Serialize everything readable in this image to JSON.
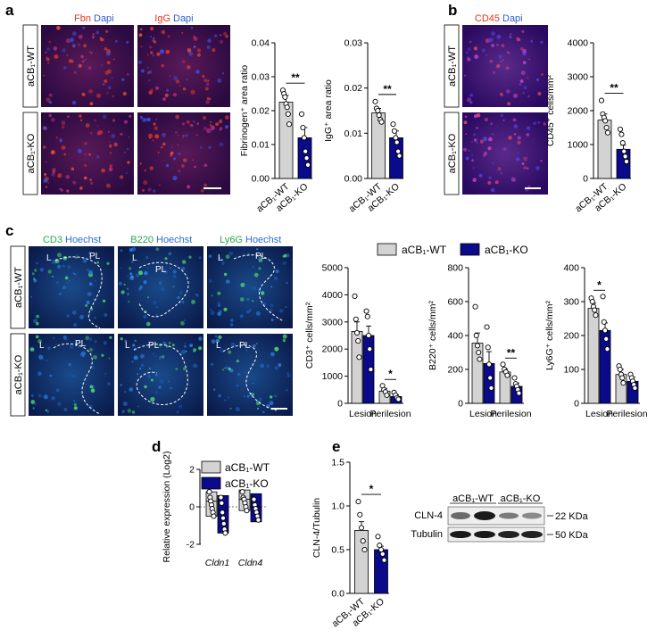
{
  "panels": {
    "a": "a",
    "b": "b",
    "c": "c",
    "d": "d",
    "e": "e"
  },
  "groups": {
    "wt": "aCB₁-WT",
    "ko": "aCB₁-KO"
  },
  "colors": {
    "wt": "#d3d3d3",
    "ko": "#0a0a8a",
    "red": "#e2341c",
    "blue": "#2b5cd6",
    "green": "#2aa84a",
    "hoechst": "#2b6ed6"
  },
  "micro_titles": {
    "a1_stain": "Fbn",
    "a1_dapi": "Dapi",
    "a2_stain": "IgG",
    "a2_dapi": "Dapi",
    "b_stain": "CD45",
    "b_dapi": "Dapi",
    "c1_stain": "CD3",
    "c1_dapi": "Hoechst",
    "c2_stain": "B220",
    "c2_dapi": "Hoechst",
    "c3_stain": "Ly6G",
    "c3_dapi": "Hoechst"
  },
  "micro_region_labels": {
    "lesion": "L",
    "perilesion": "PL"
  },
  "chart_data": [
    {
      "id": "a-fib",
      "type": "bar",
      "ylabel": "Fibrinogen⁺ area ratio",
      "ylim": [
        0,
        0.04
      ],
      "yticks": [
        "0.00",
        "0.01",
        "0.02",
        "0.03",
        "0.04"
      ],
      "categories": [
        "aCB₁-WT",
        "aCB₁-KO"
      ],
      "values": [
        0.0225,
        0.012
      ],
      "errors": [
        0.002,
        0.003
      ],
      "points": [
        [
          0.026,
          0.025,
          0.024,
          0.022,
          0.021,
          0.019,
          0.016
        ],
        [
          0.019,
          0.015,
          0.012,
          0.008,
          0.006,
          0.004
        ]
      ],
      "significance": [
        {
          "label": "**",
          "pair": [
            0,
            1
          ]
        }
      ]
    },
    {
      "id": "a-igg",
      "type": "bar",
      "ylabel": "IgG⁺ area ratio",
      "ylim": [
        0,
        0.03
      ],
      "yticks": [
        "0.00",
        "0.01",
        "0.02",
        "0.03"
      ],
      "categories": [
        "aCB₁-WT",
        "aCB₁-KO"
      ],
      "values": [
        0.0145,
        0.009
      ],
      "errors": [
        0.001,
        0.0015
      ],
      "points": [
        [
          0.017,
          0.0155,
          0.015,
          0.014,
          0.013,
          0.0125
        ],
        [
          0.012,
          0.0105,
          0.009,
          0.008,
          0.006,
          0.005
        ]
      ],
      "significance": [
        {
          "label": "**",
          "pair": [
            0,
            1
          ]
        }
      ]
    },
    {
      "id": "b-cd45",
      "type": "bar",
      "ylabel": "CD45⁺ cells/mm²",
      "ylim": [
        0,
        4000
      ],
      "yticks": [
        "0",
        "1000",
        "2000",
        "3000",
        "4000"
      ],
      "categories": [
        "aCB₁-WT",
        "aCB₁-KO"
      ],
      "values": [
        1720,
        860
      ],
      "errors": [
        180,
        120
      ],
      "points": [
        [
          2300,
          1900,
          1800,
          1700,
          1500,
          1350
        ],
        [
          1450,
          1300,
          1050,
          800,
          650,
          500
        ]
      ],
      "significance": [
        {
          "label": "**",
          "pair": [
            0,
            1
          ]
        }
      ]
    },
    {
      "id": "c-cd3",
      "type": "bar",
      "ylabel": "CD3⁺ cells/mm²",
      "ylim": [
        0,
        5000
      ],
      "yticks": [
        "0",
        "1000",
        "2000",
        "3000",
        "4000",
        "5000"
      ],
      "categories": [
        "Lesion",
        "Perilesion"
      ],
      "series": [
        {
          "values": [
            2650,
            450
          ],
          "errors": [
            350,
            100
          ],
          "points": [
            [
              3950,
              3100,
              2600,
              2300,
              1700
            ],
            [
              650,
              500,
              420,
              300
            ]
          ]
        },
        {
          "values": [
            2500,
            250
          ],
          "errors": [
            350,
            60
          ],
          "points": [
            [
              3400,
              3200,
              2500,
              2000,
              1250
            ],
            [
              400,
              300,
              200,
              150
            ]
          ]
        }
      ],
      "significance": [
        {
          "label": "*",
          "category": 1
        }
      ]
    },
    {
      "id": "c-b220",
      "type": "bar",
      "ylabel": "B220⁺ cells/mm²",
      "ylim": [
        0,
        800
      ],
      "yticks": [
        "0",
        "200",
        "400",
        "600",
        "800"
      ],
      "categories": [
        "Lesion",
        "Perilesion"
      ],
      "series": [
        {
          "values": [
            355,
            185
          ],
          "errors": [
            60,
            18
          ],
          "points": [
            [
              570,
              400,
              340,
              300,
              260
            ],
            [
              230,
              200,
              185,
              165
            ]
          ]
        },
        {
          "values": [
            235,
            100
          ],
          "errors": [
            70,
            20
          ],
          "points": [
            [
              450,
              330,
              230,
              150,
              90
            ],
            [
              150,
              115,
              100,
              80,
              60
            ]
          ]
        }
      ],
      "significance": [
        {
          "label": "**",
          "category": 1
        }
      ]
    },
    {
      "id": "c-ly6g",
      "type": "bar",
      "ylabel": "Ly6G⁺ cells/mm²",
      "ylim": [
        0,
        400
      ],
      "yticks": [
        "0",
        "100",
        "200",
        "300",
        "400"
      ],
      "categories": [
        "Lesion",
        "Perilesion"
      ],
      "series": [
        {
          "values": [
            280,
            85
          ],
          "errors": [
            15,
            15
          ],
          "points": [
            [
              310,
              300,
              285,
              275,
              260
            ],
            [
              110,
              100,
              85,
              75,
              60
            ]
          ]
        },
        {
          "values": [
            215,
            65
          ],
          "errors": [
            22,
            12
          ],
          "points": [
            [
              315,
              240,
              215,
              190,
              160
            ],
            [
              85,
              75,
              65,
              55,
              45
            ]
          ]
        }
      ],
      "significance": [
        {
          "label": "*",
          "category": 0
        }
      ]
    },
    {
      "id": "d-cldn",
      "type": "bar",
      "ylabel": "Relative expression (Log2)",
      "ylim": [
        -2,
        2
      ],
      "yticks": [
        "-2",
        "0",
        "2"
      ],
      "categories": [
        "Cldn1",
        "Cldn4"
      ],
      "series": [
        {
          "values": [
            0.3,
            0.4
          ],
          "range": [
            [
              -0.5,
              0.8
            ],
            [
              -0.2,
              0.9
            ]
          ],
          "points": [
            [
              0.8,
              0.5,
              0.3,
              0.1,
              -0.1,
              -0.3,
              -0.5
            ],
            [
              0.8,
              0.5,
              0.4,
              0.2,
              0.0,
              -0.2
            ]
          ]
        },
        {
          "values": [
            -0.2,
            0.0
          ],
          "range": [
            [
              -1.4,
              0.6
            ],
            [
              -0.8,
              0.7
            ]
          ],
          "points": [
            [
              0.5,
              0.2,
              -0.3,
              -0.6,
              -0.9,
              -1.2,
              -1.4
            ],
            [
              0.4,
              0.1,
              -0.1,
              -0.3,
              -0.5,
              -0.7
            ]
          ]
        }
      ]
    },
    {
      "id": "e-cln4",
      "type": "bar",
      "ylabel": "CLN-4/Tubulin",
      "ylim": [
        0,
        1.5
      ],
      "yticks": [
        "0.0",
        "0.5",
        "1.0",
        "1.5"
      ],
      "categories": [
        "aCB₁-WT",
        "aCB₁-KO"
      ],
      "values": [
        0.72,
        0.5
      ],
      "errors": [
        0.1,
        0.04
      ],
      "points": [
        [
          1.05,
          0.9,
          0.75,
          0.6,
          0.5
        ],
        [
          0.65,
          0.55,
          0.5,
          0.45,
          0.38
        ]
      ],
      "significance": [
        {
          "label": "*",
          "pair": [
            0,
            1
          ]
        }
      ]
    }
  ],
  "western": {
    "lane_wt": "aCB₁-WT",
    "lane_ko": "aCB₁-KO",
    "row1": "CLN-4",
    "row2": "Tubulin",
    "mw1": "22 KDa",
    "mw2": "50 KDa"
  }
}
